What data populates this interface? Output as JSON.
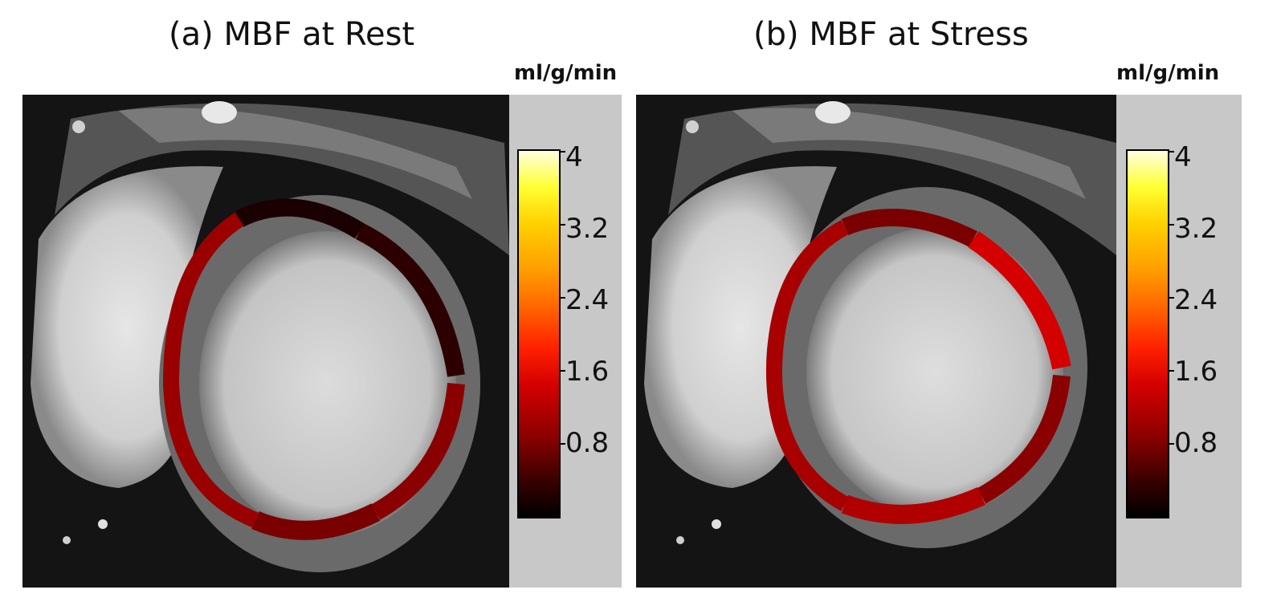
{
  "panels": [
    {
      "title": "(a) MBF at Rest",
      "unit": "ml/g/min",
      "colorbar_ticks": [
        "4",
        "3.2",
        "2.4",
        "1.6",
        "0.8"
      ]
    },
    {
      "title": "(b) MBF at Stress",
      "unit": "ml/g/min",
      "colorbar_ticks": [
        "4",
        "3.2",
        "2.4",
        "1.6",
        "0.8"
      ]
    }
  ],
  "colors": {
    "colormap_low": "#000000",
    "colormap_mid": "#d40000",
    "colormap_high": "#ffffe0"
  }
}
